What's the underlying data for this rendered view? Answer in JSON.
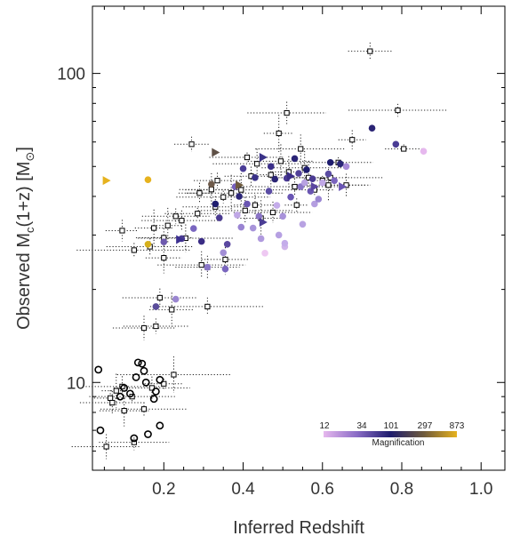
{
  "chart_data": {
    "type": "scatter",
    "title": "",
    "xlabel": "Inferred Redshift",
    "ylabel_parts": {
      "pre": "Observed M",
      "sub": "c",
      "mid": "(1+z) [M",
      "sub2": "⊙",
      "post": "]"
    },
    "xlim": [
      0.02,
      1.06
    ],
    "ylim": [
      5.2,
      165
    ],
    "yscale": "log",
    "xticks": [
      0.2,
      0.4,
      0.6,
      0.8,
      1.0
    ],
    "xtick_labels": [
      "0.2",
      "0.4",
      "0.6",
      "0.8",
      "1.0"
    ],
    "yticks": [
      10,
      100
    ],
    "ytick_labels": [
      "10",
      "100"
    ],
    "grid": false,
    "colorbar": {
      "title": "Magnification",
      "tick_labels": [
        "12",
        "34",
        "101",
        "297",
        "873"
      ],
      "colors": [
        "#e6b8ee",
        "#8a6cc6",
        "#1e1c6e",
        "#6e5a3c",
        "#e6b21e"
      ],
      "placement": "bottom-right"
    },
    "series": [
      {
        "marker": "open-circle",
        "points": [
          [
            0.035,
            11.0
          ],
          [
            0.04,
            7.0
          ],
          [
            0.09,
            9.0
          ],
          [
            0.1,
            9.6
          ],
          [
            0.115,
            9.2
          ],
          [
            0.125,
            6.6
          ],
          [
            0.13,
            10.4
          ],
          [
            0.135,
            11.6
          ],
          [
            0.145,
            11.5
          ],
          [
            0.15,
            10.9
          ],
          [
            0.155,
            10.0
          ],
          [
            0.16,
            6.8
          ],
          [
            0.175,
            8.85
          ],
          [
            0.18,
            9.35
          ],
          [
            0.19,
            7.25
          ],
          [
            0.19,
            10.2
          ]
        ]
      },
      {
        "marker": "open-square-errorbars",
        "points": [
          [
            0.055,
            6.2
          ],
          [
            0.065,
            8.9
          ],
          [
            0.07,
            8.6
          ],
          [
            0.08,
            9.4
          ],
          [
            0.095,
            9.7
          ],
          [
            0.1,
            8.1
          ],
          [
            0.12,
            9.0
          ],
          [
            0.125,
            6.4
          ],
          [
            0.15,
            8.2
          ],
          [
            0.17,
            9.6
          ],
          [
            0.2,
            9.9
          ],
          [
            0.225,
            10.6
          ],
          [
            0.095,
            31.0
          ],
          [
            0.125,
            26.8
          ],
          [
            0.15,
            15.0
          ],
          [
            0.165,
            27.5
          ],
          [
            0.175,
            31.6
          ],
          [
            0.18,
            15.2
          ],
          [
            0.19,
            18.8
          ],
          [
            0.2,
            25.3
          ],
          [
            0.2,
            29.4
          ],
          [
            0.21,
            32.2
          ],
          [
            0.22,
            17.2
          ],
          [
            0.23,
            34.5
          ],
          [
            0.245,
            33.4
          ],
          [
            0.255,
            29.3
          ],
          [
            0.27,
            59.0
          ],
          [
            0.285,
            35.2
          ],
          [
            0.29,
            41.0
          ],
          [
            0.295,
            24.0
          ],
          [
            0.31,
            17.6
          ],
          [
            0.31,
            23.6
          ],
          [
            0.32,
            42.1
          ],
          [
            0.33,
            37.0
          ],
          [
            0.335,
            45.0
          ],
          [
            0.35,
            39.8
          ],
          [
            0.355,
            25.0
          ],
          [
            0.37,
            41.0
          ],
          [
            0.395,
            42.0
          ],
          [
            0.405,
            36.0
          ],
          [
            0.41,
            53.5
          ],
          [
            0.42,
            46.5
          ],
          [
            0.43,
            37.5
          ],
          [
            0.435,
            51.0
          ],
          [
            0.445,
            34.0
          ],
          [
            0.47,
            47.0
          ],
          [
            0.475,
            35.5
          ],
          [
            0.49,
            64.0
          ],
          [
            0.495,
            52.0
          ],
          [
            0.51,
            74.5
          ],
          [
            0.515,
            48.0
          ],
          [
            0.53,
            43.0
          ],
          [
            0.535,
            37.5
          ],
          [
            0.545,
            57.0
          ],
          [
            0.555,
            49.5
          ],
          [
            0.565,
            46.0
          ],
          [
            0.58,
            42.0
          ],
          [
            0.6,
            45.0
          ],
          [
            0.615,
            43.5
          ],
          [
            0.62,
            46.0
          ],
          [
            0.64,
            51.5
          ],
          [
            0.66,
            43.5
          ],
          [
            0.675,
            61.0
          ],
          [
            0.72,
            118.0
          ],
          [
            0.79,
            76.0
          ],
          [
            0.805,
            57.0
          ]
        ]
      },
      {
        "marker": "filled-circle",
        "points": [
          [
            0.16,
            28.0,
            "#d6b01c"
          ],
          [
            0.16,
            45.3,
            "#e6b21e"
          ],
          [
            0.18,
            17.6,
            "#5a4c9a"
          ],
          [
            0.2,
            28.5,
            "#6e5aae"
          ],
          [
            0.23,
            18.6,
            "#9a86d0"
          ],
          [
            0.245,
            29.2,
            "#4a3c92"
          ],
          [
            0.275,
            31.5,
            "#7a66c0"
          ],
          [
            0.295,
            28.6,
            "#3a2c84"
          ],
          [
            0.31,
            23.6,
            "#8a76c8"
          ],
          [
            0.32,
            43.8,
            "#6e5a4a"
          ],
          [
            0.33,
            37.8,
            "#1e1c6e"
          ],
          [
            0.34,
            34.1,
            "#4a3a90"
          ],
          [
            0.35,
            26.3,
            "#a28ed6"
          ],
          [
            0.355,
            23.3,
            "#7a66be"
          ],
          [
            0.36,
            28.0,
            "#5a48a0"
          ],
          [
            0.38,
            43.0,
            "#7660bc"
          ],
          [
            0.385,
            34.8,
            "#c0a8e6"
          ],
          [
            0.39,
            40.0,
            "#2c2678"
          ],
          [
            0.395,
            31.8,
            "#9a84d2"
          ],
          [
            0.4,
            49.2,
            "#4a3c96"
          ],
          [
            0.41,
            37.8,
            "#6a56b2"
          ],
          [
            0.425,
            31.6,
            "#a894da"
          ],
          [
            0.43,
            46.0,
            "#3a3288"
          ],
          [
            0.44,
            34.5,
            "#8a74c6"
          ],
          [
            0.445,
            29.2,
            "#b09ade"
          ],
          [
            0.455,
            26.2,
            "#eec8f2"
          ],
          [
            0.465,
            41.6,
            "#5a4ca4"
          ],
          [
            0.47,
            50.0,
            "#3c308a"
          ],
          [
            0.48,
            45.5,
            "#2a2474"
          ],
          [
            0.485,
            37.4,
            "#c4acea"
          ],
          [
            0.49,
            30.0,
            "#b6a0e2"
          ],
          [
            0.5,
            34.5,
            "#a892da"
          ],
          [
            0.505,
            27.5,
            "#d0b4ea"
          ],
          [
            0.51,
            45.8,
            "#4a3a94"
          ],
          [
            0.52,
            39.8,
            "#6a56b4"
          ],
          [
            0.53,
            53.0,
            "#2a2476"
          ],
          [
            0.54,
            47.5,
            "#504098"
          ],
          [
            0.545,
            43.0,
            "#8a76c8"
          ],
          [
            0.55,
            32.5,
            "#b8a2e2"
          ],
          [
            0.56,
            48.8,
            "#1e1c6e"
          ],
          [
            0.57,
            41.6,
            "#6a56b2"
          ],
          [
            0.575,
            45.6,
            "#4a3a92"
          ],
          [
            0.58,
            37.8,
            "#b49ee0"
          ],
          [
            0.59,
            39.2,
            "#9a86d2"
          ],
          [
            0.6,
            44.3,
            "#c0a8e6"
          ],
          [
            0.615,
            47.3,
            "#5a4ca2"
          ],
          [
            0.63,
            45.0,
            "#7a64be"
          ],
          [
            0.645,
            51.0,
            "#2a2676"
          ],
          [
            0.66,
            50.0,
            "#a88ad8"
          ],
          [
            0.725,
            66.5,
            "#2a2474"
          ],
          [
            0.785,
            59.0,
            "#4a3c94"
          ],
          [
            0.855,
            56.0,
            "#e6b8ee"
          ],
          [
            0.62,
            51.5,
            "#1e1c6e"
          ],
          [
            0.555,
            44.3,
            "#b8a2e2"
          ],
          [
            0.505,
            28.2,
            "#c4acea"
          ]
        ]
      },
      {
        "marker": "filled-triangle",
        "points": [
          [
            0.055,
            45.0,
            "#e6b21e"
          ],
          [
            0.33,
            55.5,
            "#5e5046"
          ],
          [
            0.39,
            43.5,
            "#6e5a3c"
          ],
          [
            0.45,
            53.5,
            "#3a3288"
          ],
          [
            0.45,
            33.0,
            "#4a3c94"
          ],
          [
            0.24,
            29.0,
            "#3c3090"
          ],
          [
            0.58,
            43.0,
            "#5a46a0"
          ],
          [
            0.65,
            43.0,
            "#6a56b4"
          ],
          [
            0.52,
            46.5,
            "#3a2c86"
          ]
        ]
      }
    ]
  }
}
